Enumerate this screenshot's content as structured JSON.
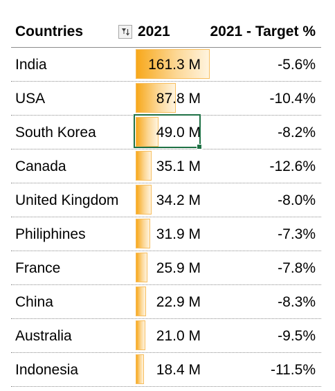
{
  "header": {
    "col_country": "Countries",
    "col_year": "2021",
    "col_target": "2021 - Target %"
  },
  "max_value": 161.3,
  "rows": [
    {
      "country": "India",
      "value": 161.3,
      "value_label": "161.3 M",
      "target": "-5.6%"
    },
    {
      "country": "USA",
      "value": 87.8,
      "value_label": "87.8 M",
      "target": "-10.4%"
    },
    {
      "country": "South Korea",
      "value": 49.0,
      "value_label": "49.0 M",
      "target": "-8.2%"
    },
    {
      "country": "Canada",
      "value": 35.1,
      "value_label": "35.1 M",
      "target": "-12.6%"
    },
    {
      "country": "United Kingdom",
      "value": 34.2,
      "value_label": "34.2 M",
      "target": "-8.0%"
    },
    {
      "country": "Philiphines",
      "value": 31.9,
      "value_label": "31.9 M",
      "target": "-7.3%"
    },
    {
      "country": "France",
      "value": 25.9,
      "value_label": "25.9 M",
      "target": "-7.8%"
    },
    {
      "country": "China",
      "value": 22.9,
      "value_label": "22.9 M",
      "target": "-8.3%"
    },
    {
      "country": "Australia",
      "value": 21.0,
      "value_label": "21.0 M",
      "target": "-9.5%"
    },
    {
      "country": "Indonesia",
      "value": 18.4,
      "value_label": "18.4 M",
      "target": "-11.5%"
    }
  ],
  "selected_row": 2,
  "colors": {
    "bar": "#f7a81b",
    "selection": "#1e7145"
  }
}
